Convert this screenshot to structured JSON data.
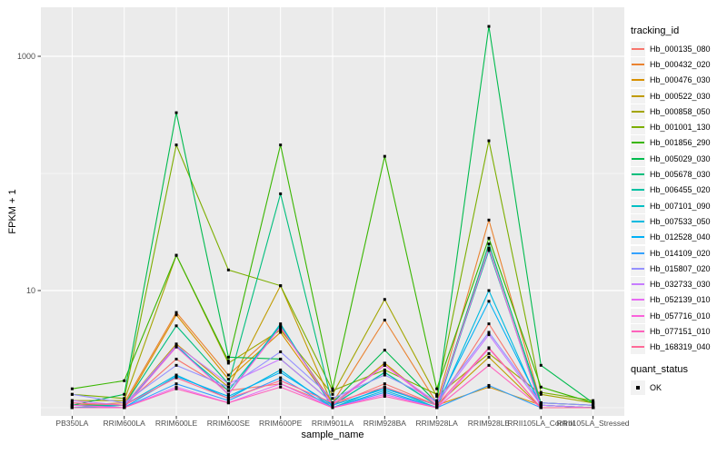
{
  "figure": {
    "bg": "#FFFFFF",
    "panel_bg": "#EBEBEB",
    "grid_color": "#FFFFFF",
    "tick_mark_color": "#333333",
    "axis_text_color": "#4D4D4D",
    "point_color": "#000000",
    "legend_key_bg": "#F2F2F2"
  },
  "chart_data": {
    "type": "line",
    "xlabel": "sample_name",
    "ylabel": "FPKM + 1",
    "yscale": "log10",
    "ylim": [
      0.85,
      2600
    ],
    "y_major_ticks": [
      {
        "value": 10,
        "label": "10"
      },
      {
        "value": 1000,
        "label": "1000"
      }
    ],
    "y_minor_gridlines": [
      1,
      100
    ],
    "grid": true,
    "legend_position": "right",
    "marker": {
      "shape": "square",
      "color": "#000000",
      "label": "OK"
    },
    "categories": [
      "PB350LA",
      "RRIM600LA",
      "RRIM600LE",
      "RRIM600SE",
      "RRIM600PE",
      "RRIM901LA",
      "RRIM928BA",
      "RRIM928LA",
      "RRIM928LE",
      "RRII105LA_Control",
      "RRII105LA_Stressed"
    ],
    "series": [
      {
        "name": "Hb_000135_080",
        "color": "#F8766D",
        "values": [
          1.1,
          1.05,
          2.6,
          1.4,
          1.6,
          1.05,
          1.6,
          1.05,
          5.2,
          1.05,
          1.0
        ]
      },
      {
        "name": "Hb_000432_020",
        "color": "#EA8331",
        "values": [
          1.05,
          1.1,
          6.5,
          1.9,
          4.8,
          1.1,
          5.6,
          1.1,
          40.0,
          1.1,
          1.05
        ]
      },
      {
        "name": "Hb_000476_030",
        "color": "#D89000",
        "values": [
          1.05,
          1.05,
          6.2,
          1.75,
          4.4,
          1.05,
          2.4,
          1.05,
          1.5,
          1.05,
          1.0
        ]
      },
      {
        "name": "Hb_000522_030",
        "color": "#C09B00",
        "values": [
          1.0,
          1.05,
          3.5,
          1.5,
          11.0,
          1.05,
          2.4,
          1.05,
          2.7,
          1.0,
          1.0
        ]
      },
      {
        "name": "Hb_000858_050",
        "color": "#A3A500",
        "values": [
          1.15,
          1.15,
          20.0,
          2.4,
          4.6,
          1.3,
          8.4,
          1.25,
          2.9,
          1.3,
          1.1
        ]
      },
      {
        "name": "Hb_001001_130",
        "color": "#7CAE00",
        "values": [
          1.3,
          1.2,
          175,
          15.0,
          11.0,
          1.4,
          2.1,
          1.3,
          190,
          1.35,
          1.15
        ]
      },
      {
        "name": "Hb_001856_290",
        "color": "#39B600",
        "values": [
          1.45,
          1.7,
          20.0,
          2.5,
          175,
          1.45,
          140,
          1.45,
          28.0,
          1.5,
          1.1
        ]
      },
      {
        "name": "Hb_005029_030",
        "color": "#00BB4E",
        "values": [
          1.05,
          1.3,
          330,
          2.7,
          2.6,
          1.1,
          3.1,
          1.1,
          1800,
          2.3,
          1.1
        ]
      },
      {
        "name": "Hb_005678_030",
        "color": "#00BF7D",
        "values": [
          1.05,
          1.05,
          5.0,
          1.6,
          67.0,
          1.05,
          2.0,
          1.05,
          25.0,
          1.1,
          1.05
        ]
      },
      {
        "name": "Hb_006455_020",
        "color": "#00C1A3",
        "values": [
          1.0,
          1.05,
          3.3,
          1.4,
          5.0,
          1.05,
          2.0,
          1.05,
          22.0,
          1.05,
          1.0
        ]
      },
      {
        "name": "Hb_007101_090",
        "color": "#00BFC4",
        "values": [
          1.0,
          1.0,
          3.4,
          1.3,
          5.2,
          1.0,
          1.5,
          1.0,
          23.0,
          1.0,
          1.0
        ]
      },
      {
        "name": "Hb_007533_050",
        "color": "#00BAE0",
        "values": [
          1.0,
          1.05,
          1.9,
          1.2,
          2.1,
          1.0,
          1.4,
          1.0,
          10.0,
          1.0,
          1.0
        ]
      },
      {
        "name": "Hb_012528_040",
        "color": "#00B0F6",
        "values": [
          1.0,
          1.0,
          1.85,
          1.25,
          2.0,
          1.05,
          1.45,
          1.05,
          8.1,
          1.05,
          1.0
        ]
      },
      {
        "name": "Hb_014109_020",
        "color": "#35A2FF",
        "values": [
          1.05,
          1.0,
          1.6,
          1.15,
          1.8,
          1.0,
          1.35,
          1.0,
          1.55,
          1.0,
          1.0
        ]
      },
      {
        "name": "Hb_015807_020",
        "color": "#9590FF",
        "values": [
          1.3,
          1.1,
          2.3,
          1.5,
          3.0,
          1.2,
          1.9,
          1.15,
          4.4,
          1.1,
          1.05
        ]
      },
      {
        "name": "Hb_032733_030",
        "color": "#C77CFF",
        "values": [
          1.15,
          1.05,
          3.4,
          1.6,
          2.6,
          1.1,
          2.3,
          1.1,
          4.2,
          1.05,
          1.0
        ]
      },
      {
        "name": "Hb_052139_010",
        "color": "#E76BF3",
        "values": [
          1.0,
          1.0,
          1.5,
          1.1,
          1.6,
          1.0,
          1.3,
          1.0,
          3.2,
          1.0,
          1.0
        ]
      },
      {
        "name": "Hb_057716_010",
        "color": "#FA62DB",
        "values": [
          1.05,
          1.0,
          3.3,
          1.3,
          4.9,
          1.05,
          2.3,
          1.05,
          23.0,
          1.0,
          1.0
        ]
      },
      {
        "name": "Hb_077151_010",
        "color": "#FF62BC",
        "values": [
          1.0,
          1.0,
          1.45,
          1.1,
          1.5,
          1.0,
          1.25,
          1.0,
          2.3,
          1.0,
          1.0
        ]
      },
      {
        "name": "Hb_168319_040",
        "color": "#FF6A98",
        "values": [
          1.1,
          1.05,
          1.8,
          1.2,
          1.7,
          1.1,
          1.5,
          1.05,
          3.25,
          1.0,
          1.0
        ]
      }
    ]
  },
  "legend": {
    "tracking_title": "tracking_id",
    "quant_title": "quant_status",
    "quant_items": [
      {
        "label": "OK"
      }
    ]
  },
  "axes": {
    "x_title": "sample_name",
    "y_title": "FPKM + 1"
  }
}
